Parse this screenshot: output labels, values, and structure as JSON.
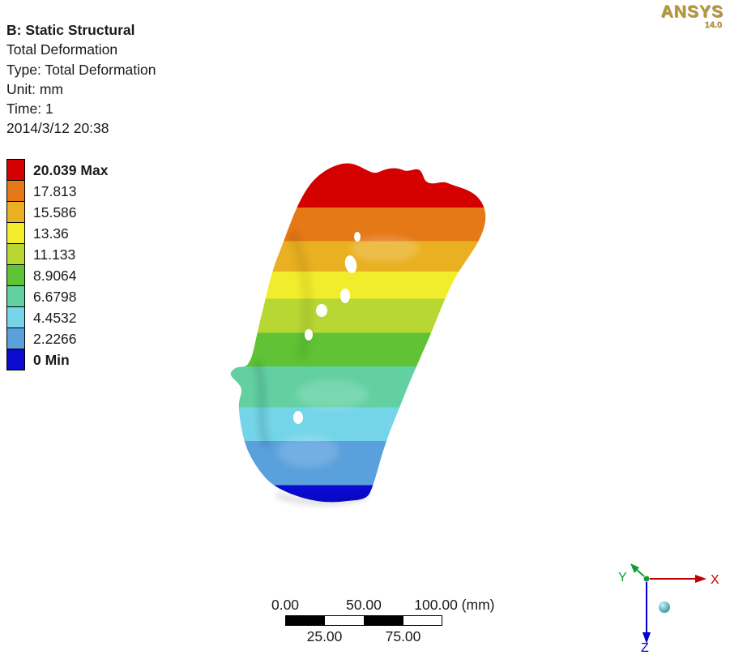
{
  "header": {
    "title": "B: Static Structural",
    "lines": [
      "Total Deformation",
      "Type: Total Deformation",
      "Unit: mm",
      "Time: 1",
      "2014/3/12 20:38"
    ]
  },
  "logo": {
    "brand": "ANSYS",
    "version": "14.0"
  },
  "legend": {
    "items": [
      {
        "label": "20.039 Max",
        "color": "#d40000"
      },
      {
        "label": "17.813",
        "color": "#e57817"
      },
      {
        "label": "15.586",
        "color": "#e9b021"
      },
      {
        "label": "13.36",
        "color": "#f2ed2c"
      },
      {
        "label": "11.133",
        "color": "#b8d733"
      },
      {
        "label": "8.9064",
        "color": "#5fc335"
      },
      {
        "label": "6.6798",
        "color": "#63d0a2"
      },
      {
        "label": "4.4532",
        "color": "#74d5e8"
      },
      {
        "label": "2.2266",
        "color": "#5aa0dc"
      },
      {
        "label": "0 Min",
        "color": "#0a0ad0"
      }
    ]
  },
  "scale_bar": {
    "label_0": "0.00",
    "label_50": "50.00",
    "label_100": "100.00 (mm)",
    "label_25": "25.00",
    "label_75": "75.00"
  },
  "triad": {
    "x_label": "X",
    "y_label": "Y",
    "z_label": "Z",
    "x_color": "#c00000",
    "y_color": "#129a37",
    "z_color": "#0000c8"
  }
}
